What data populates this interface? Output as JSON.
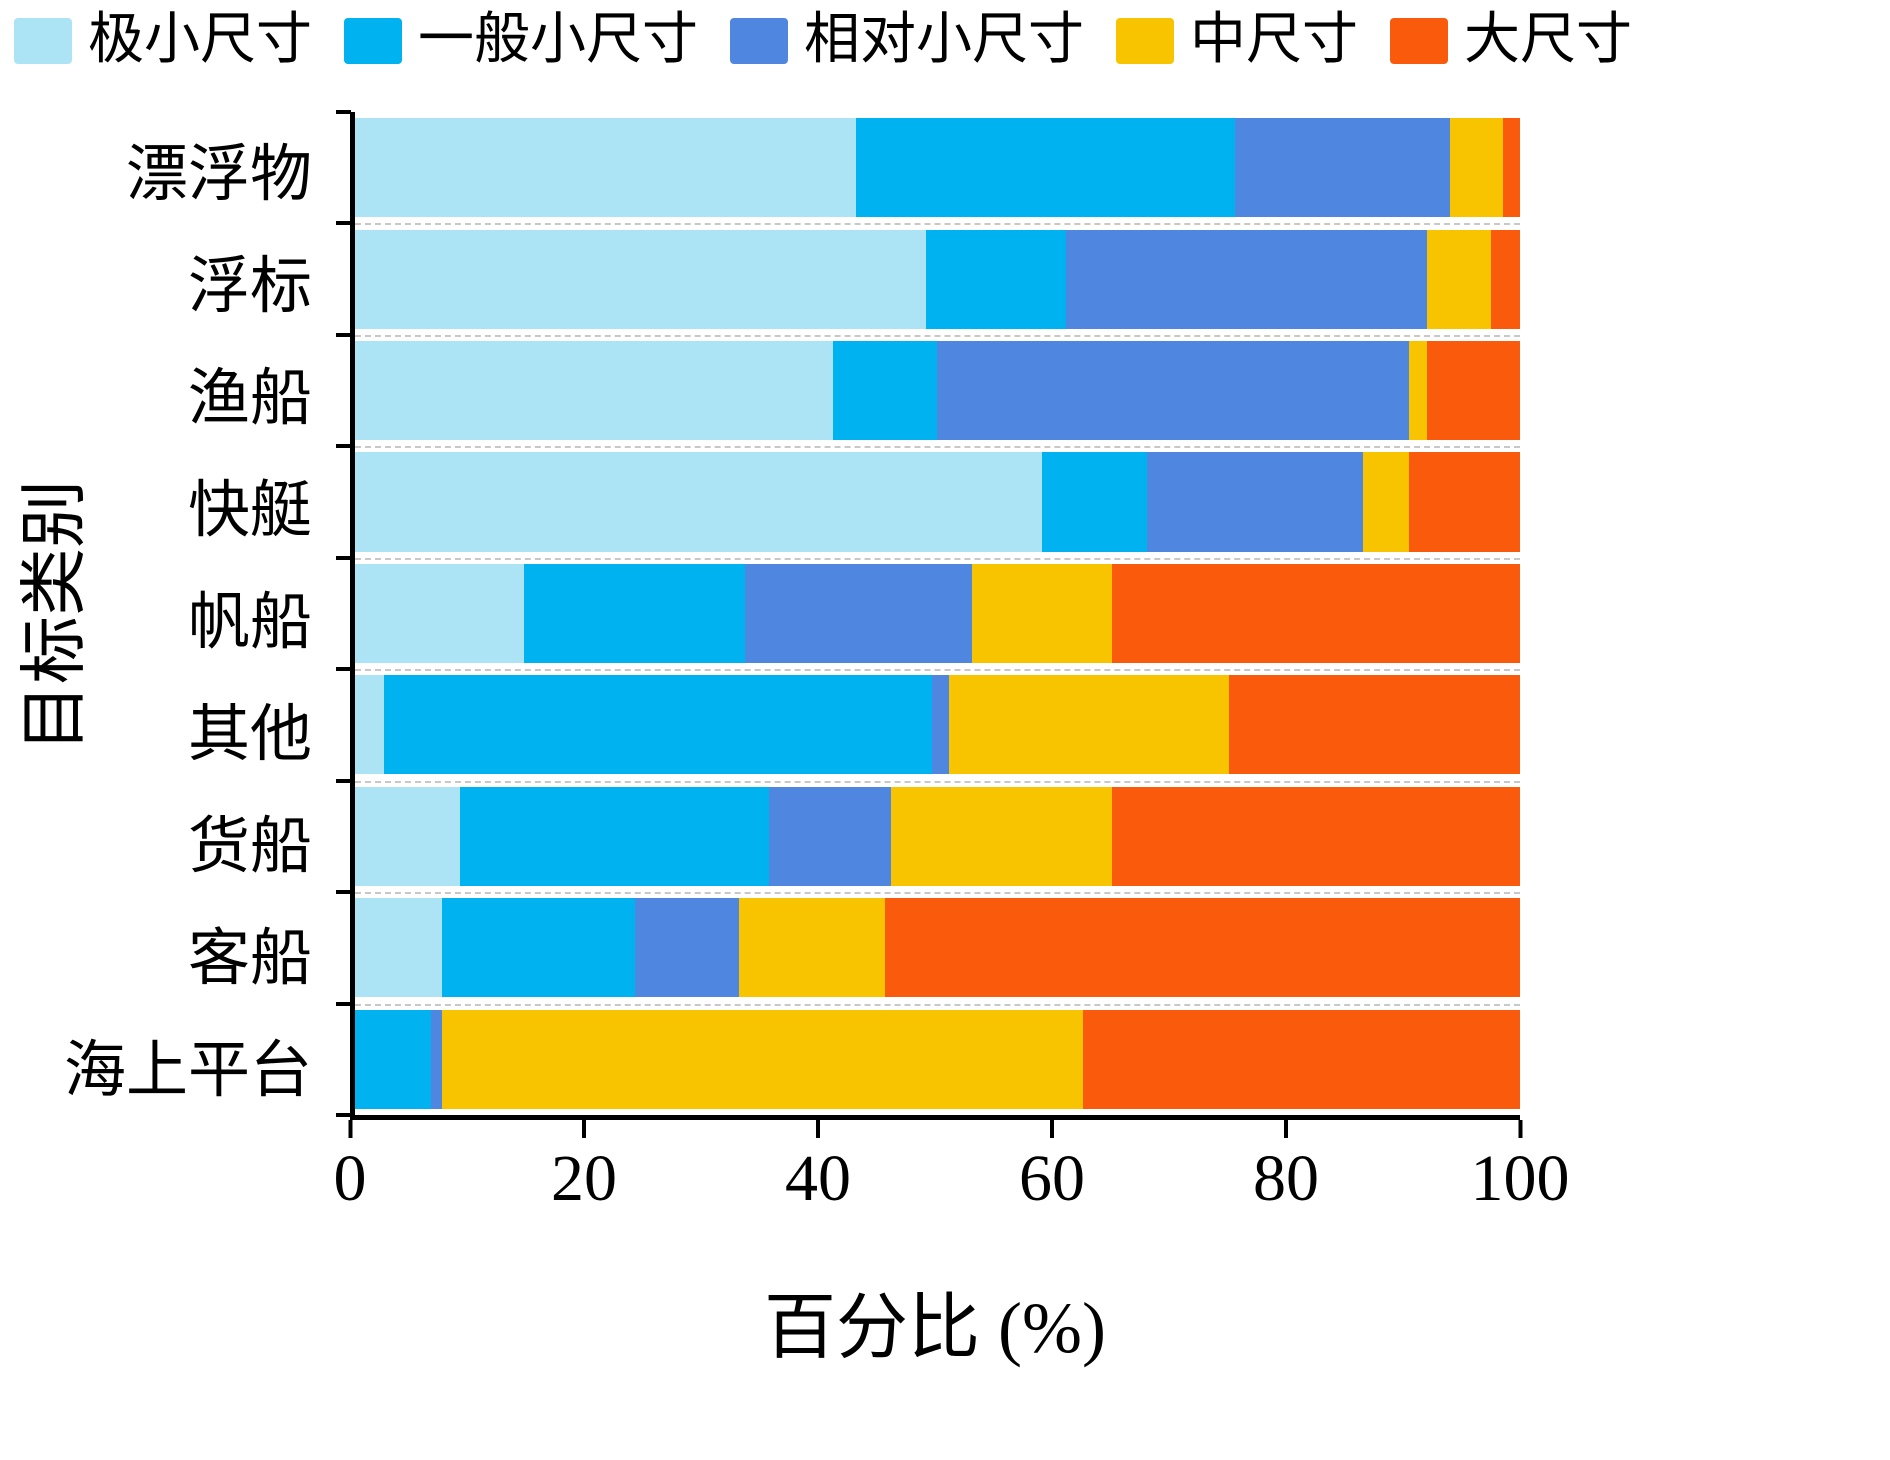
{
  "chart_data": {
    "type": "bar",
    "orientation": "horizontal",
    "stacked": true,
    "percent": true,
    "title": "",
    "xlabel": "百分比 (%)",
    "ylabel": "目标类别",
    "xlim": [
      0,
      100
    ],
    "xticks": [
      0,
      20,
      40,
      60,
      80,
      100
    ],
    "grid": "dashed horizontal separators between bars",
    "legend_position": "top",
    "categories": [
      "漂浮物",
      "浮标",
      "渔船",
      "快艇",
      "帆船",
      "其他",
      "货船",
      "客船",
      "海上平台"
    ],
    "series": [
      {
        "name": "极小尺寸",
        "color": "#ade4f5",
        "values": [
          43,
          49,
          41,
          59,
          14.5,
          2.5,
          9,
          7.5,
          0
        ]
      },
      {
        "name": "一般小尺寸",
        "color": "#00b2f0",
        "values": [
          32.5,
          12,
          9,
          9,
          19,
          47,
          26.5,
          16.5,
          6.5
        ]
      },
      {
        "name": "相对小尺寸",
        "color": "#4e86e0",
        "values": [
          18.5,
          31,
          40.5,
          18.5,
          19.5,
          1.5,
          10.5,
          9,
          1
        ]
      },
      {
        "name": "中尺寸",
        "color": "#f8c400",
        "values": [
          4.5,
          5.5,
          1.5,
          4,
          12,
          24,
          19,
          12.5,
          55
        ]
      },
      {
        "name": "大尺寸",
        "color": "#fa5a0c",
        "values": [
          1.5,
          2.5,
          8,
          9.5,
          35,
          25,
          35,
          54.5,
          37.5
        ]
      }
    ],
    "axis_color": "#000000",
    "gridline_color": "#c8c8c8"
  }
}
